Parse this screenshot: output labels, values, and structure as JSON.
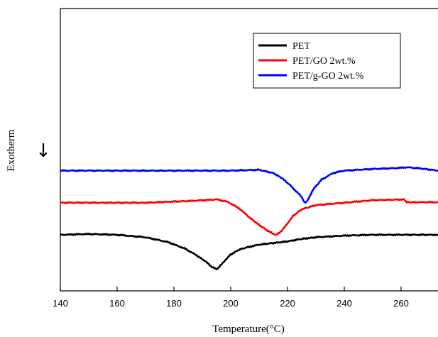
{
  "chart_data": {
    "type": "line",
    "xlabel": "Temperature(°C)",
    "ylabel": "Exotherm",
    "ylabel_arrow": "↓",
    "xlim": [
      140,
      273
    ],
    "ylim": [
      0,
      100
    ],
    "x_ticks": [
      140,
      160,
      180,
      200,
      220,
      240,
      260
    ],
    "y_ticks_shown": false,
    "grid": false,
    "legend_position": "top-right",
    "series": [
      {
        "name": "PET",
        "color": "#000000",
        "x": [
          140,
          150,
          160,
          170,
          178,
          184,
          188,
          191,
          193,
          195,
          196,
          198,
          200,
          203,
          206,
          210,
          215,
          220,
          225,
          230,
          240,
          250,
          260,
          273
        ],
        "values": [
          22,
          22.5,
          22,
          20.5,
          17.5,
          13.5,
          9.5,
          6.0,
          3.0,
          1.0,
          2.5,
          6.5,
          10.0,
          13.0,
          14.5,
          16.0,
          17.0,
          18.0,
          19.5,
          20.5,
          21.5,
          22.0,
          22.0,
          22.0
        ]
      },
      {
        "name": "PET/GO 2wt.%",
        "color": "#ff0000",
        "x": [
          140,
          155,
          170,
          185,
          195,
          199,
          203,
          207,
          210,
          213,
          215,
          216,
          218,
          220,
          222,
          225,
          230,
          240,
          250,
          261,
          262,
          265,
          273
        ],
        "values": [
          41.5,
          41.5,
          41.5,
          42.5,
          43.5,
          42.0,
          38.0,
          32.0,
          28.0,
          24.5,
          22.5,
          22.0,
          24.5,
          29.0,
          33.5,
          37.5,
          40.0,
          41.5,
          43.0,
          43.5,
          41.8,
          41.8,
          41.8
        ]
      },
      {
        "name": "PET/g-GO 2wt.%",
        "color": "#0000ff",
        "x": [
          140,
          160,
          180,
          200,
          210,
          215,
          218,
          221,
          223,
          225,
          226,
          227,
          229,
          232,
          236,
          240,
          250,
          258,
          262,
          266,
          273
        ],
        "values": [
          61,
          61,
          61,
          61,
          61.5,
          59.5,
          56.5,
          52.0,
          48.5,
          45.0,
          41.5,
          42.5,
          49.5,
          55.5,
          59.5,
          61.0,
          62.0,
          62.5,
          63.0,
          62.5,
          61.0
        ]
      }
    ]
  }
}
